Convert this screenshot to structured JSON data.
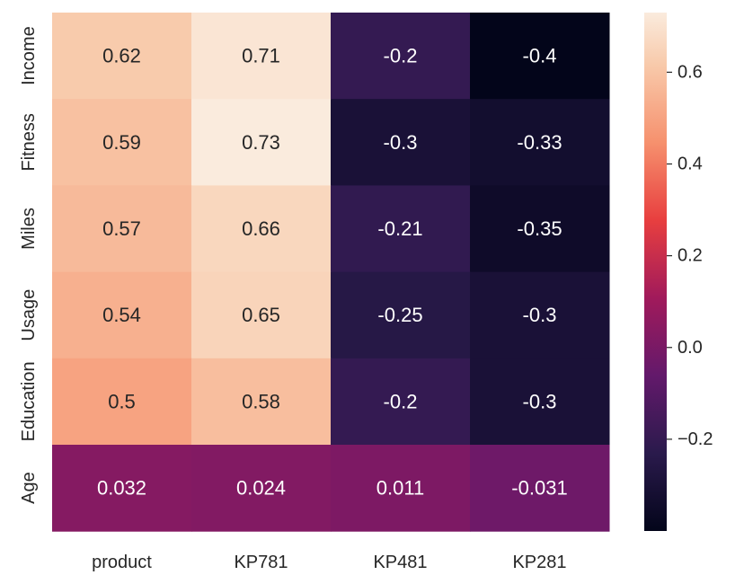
{
  "chart_data": {
    "type": "heatmap",
    "x_categories": [
      "product",
      "KP781",
      "KP481",
      "KP281"
    ],
    "y_categories": [
      "Income",
      "Fitness",
      "Miles",
      "Usage",
      "Education",
      "Age"
    ],
    "values": [
      [
        0.62,
        0.71,
        -0.2,
        -0.4
      ],
      [
        0.59,
        0.73,
        -0.3,
        -0.33
      ],
      [
        0.57,
        0.66,
        -0.21,
        -0.35
      ],
      [
        0.54,
        0.65,
        -0.25,
        -0.3
      ],
      [
        0.5,
        0.58,
        -0.2,
        -0.3
      ],
      [
        0.032,
        0.024,
        0.011,
        -0.031
      ]
    ],
    "labels": [
      [
        "0.62",
        "0.71",
        "-0.2",
        "-0.4"
      ],
      [
        "0.59",
        "0.73",
        "-0.3",
        "-0.33"
      ],
      [
        "0.57",
        "0.66",
        "-0.21",
        "-0.35"
      ],
      [
        "0.54",
        "0.65",
        "-0.25",
        "-0.3"
      ],
      [
        "0.5",
        "0.58",
        "-0.2",
        "-0.3"
      ],
      [
        "0.032",
        "0.024",
        "0.011",
        "-0.031"
      ]
    ],
    "colormap": "rocket",
    "vmin": -0.4,
    "vmax": 0.73,
    "colorbar": {
      "ticks": [
        0.6,
        0.4,
        0.2,
        0.0,
        -0.2
      ],
      "tick_labels": [
        "0.6",
        "0.4",
        "0.2",
        "0.0",
        "−0.2"
      ]
    },
    "title": "",
    "xlabel": "",
    "ylabel": ""
  }
}
